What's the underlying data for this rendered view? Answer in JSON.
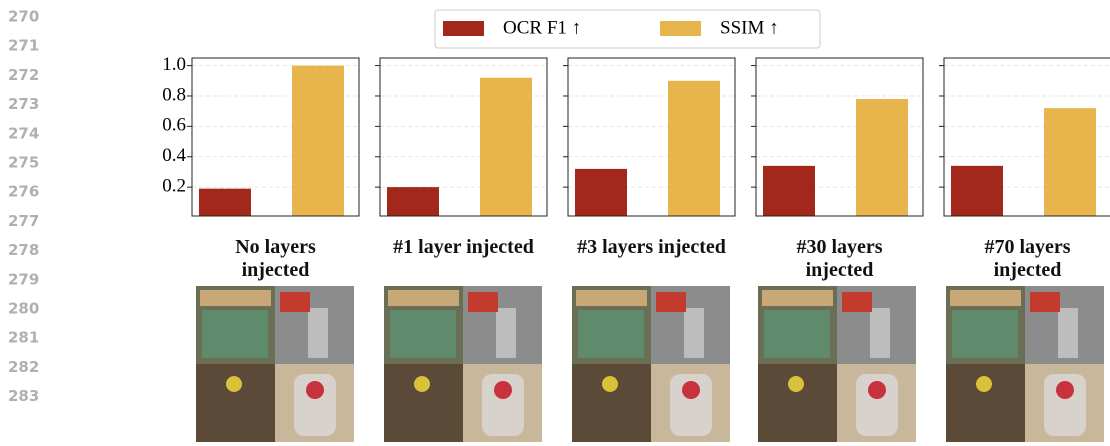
{
  "line_numbers": [
    "270",
    "271",
    "272",
    "273",
    "274",
    "275",
    "276",
    "277",
    "278",
    "279",
    "280",
    "281",
    "282",
    "283"
  ],
  "legend": {
    "series": [
      {
        "name": "OCR F1 ↑",
        "color": "#a1281a"
      },
      {
        "name": "SSIM ↑",
        "color": "#e8b44c"
      }
    ]
  },
  "chart_data": [
    {
      "type": "bar",
      "title": "No layers injected",
      "values": [
        0.19,
        1.0
      ],
      "ylim": [
        0.01,
        1.05
      ],
      "yticks": [
        0.2,
        0.4,
        0.6,
        0.8,
        {
          "value": 1,
          "label": "1.0"
        }
      ],
      "tick_labels": true,
      "grid": true
    },
    {
      "type": "bar",
      "title": "#1 layer injected",
      "values": [
        0.2,
        0.92
      ],
      "ylim": [
        0.01,
        1.05
      ],
      "yticks": [
        0.2,
        0.4,
        0.6,
        0.8,
        1
      ],
      "tick_labels": false,
      "grid": true
    },
    {
      "type": "bar",
      "title": "#3 layers injected",
      "values": [
        0.32,
        0.9
      ],
      "ylim": [
        0.01,
        1.05
      ],
      "yticks": [
        0.2,
        0.4,
        0.6,
        0.8,
        1
      ],
      "tick_labels": false,
      "grid": true
    },
    {
      "type": "bar",
      "title": "#30 layers injected",
      "values": [
        0.34,
        0.78
      ],
      "ylim": [
        0.01,
        1.05
      ],
      "yticks": [
        0.2,
        0.4,
        0.6,
        0.8,
        1
      ],
      "tick_labels": false,
      "grid": true
    },
    {
      "type": "bar",
      "title": "#70 layers injected",
      "values": [
        0.34,
        0.72
      ],
      "ylim": [
        0.01,
        1.05
      ],
      "yticks": [
        0.2,
        0.4,
        0.6,
        0.8,
        1
      ],
      "tick_labels": false,
      "grid": true
    }
  ]
}
